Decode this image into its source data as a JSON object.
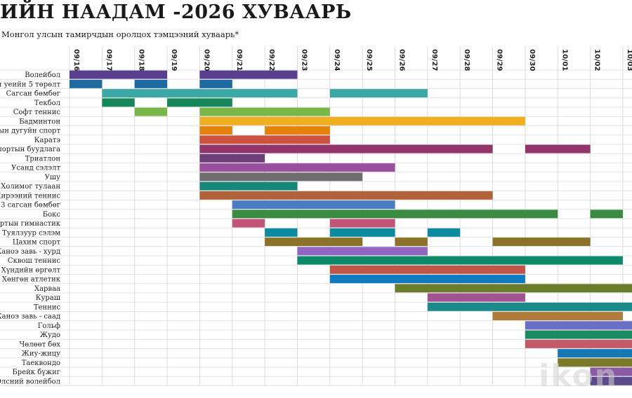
{
  "header": {
    "title": "ИЙН НААДАМ -2026 ХУВААРЬ",
    "subtitle": "Монгол улсын тамирчдын оролцох тэмцээний хуваарь*"
  },
  "watermark": "ikon",
  "chart_data": {
    "type": "gantt",
    "dates": [
      "09/16",
      "09/17",
      "09/18",
      "09/19",
      "09/20",
      "09/21",
      "09/22",
      "09/23",
      "09/24",
      "09/25",
      "09/26",
      "09/27",
      "09/28",
      "09/29",
      "09/30",
      "10/01",
      "10/02",
      "10/03"
    ],
    "rows": [
      {
        "label": "Волейбол",
        "color": "#5b3f8f",
        "spans": [
          [
            0,
            3
          ],
          [
            4,
            7
          ]
        ]
      },
      {
        "label": "ин уеийн 5 төрөлт",
        "color": "#1c6aa0",
        "spans": [
          [
            0,
            1
          ],
          [
            2,
            3
          ],
          [
            4,
            5
          ]
        ]
      },
      {
        "label": "Сагсан бөмбөг",
        "color": "#3aa8a4",
        "spans": [
          [
            1,
            7
          ],
          [
            8,
            11
          ]
        ]
      },
      {
        "label": "Текбол",
        "color": "#15875a",
        "spans": [
          [
            1,
            2
          ],
          [
            3,
            5
          ]
        ]
      },
      {
        "label": "Софт теннис",
        "color": "#7ab648",
        "spans": [
          [
            2,
            3
          ],
          [
            4,
            8
          ]
        ]
      },
      {
        "label": "Бадминтон",
        "color": "#f0ae1e",
        "spans": [
          [
            4,
            14
          ]
        ]
      },
      {
        "label": "мын дугуйн спорт",
        "color": "#e5820e",
        "spans": [
          [
            4,
            5
          ],
          [
            6,
            8
          ]
        ]
      },
      {
        "label": "Каратэ",
        "color": "#cf5240",
        "spans": [
          [
            4,
            8
          ]
        ]
      },
      {
        "label": "Спортын буудлага",
        "color": "#93346a",
        "spans": [
          [
            4,
            13
          ],
          [
            14,
            16
          ]
        ]
      },
      {
        "label": "Триатлон",
        "color": "#6e3e78",
        "spans": [
          [
            4,
            6
          ]
        ]
      },
      {
        "label": "Усанд сэлэлт",
        "color": "#9a4f9e",
        "spans": [
          [
            4,
            10
          ]
        ]
      },
      {
        "label": "Ушу",
        "color": "#6e6e6e",
        "spans": [
          [
            4,
            9
          ]
        ]
      },
      {
        "label": "Холимог тулаан",
        "color": "#168778",
        "spans": [
          [
            4,
            7
          ]
        ]
      },
      {
        "label": "Ширээний теннис",
        "color": "#b0633a",
        "spans": [
          [
            4,
            13
          ]
        ]
      },
      {
        "label": "3×3 сагсан бөмбөг",
        "color": "#4a7cc4",
        "spans": [
          [
            5,
            10
          ]
        ]
      },
      {
        "label": "Бокс",
        "color": "#3b8a42",
        "spans": [
          [
            5,
            15
          ],
          [
            16,
            17
          ]
        ]
      },
      {
        "label": "ортын гимнастик",
        "color": "#c25577",
        "spans": [
          [
            5,
            6
          ],
          [
            8,
            10
          ]
        ]
      },
      {
        "label": "Туялзуур сэлэм",
        "color": "#0b8aa0",
        "spans": [
          [
            6,
            7
          ],
          [
            8,
            10
          ],
          [
            11,
            12
          ]
        ]
      },
      {
        "label": "Цахим спорт",
        "color": "#8c7228",
        "spans": [
          [
            6,
            9
          ],
          [
            10,
            11
          ],
          [
            13,
            16
          ]
        ]
      },
      {
        "label": "Каноэ завь - хурд",
        "color": "#9066c0",
        "spans": [
          [
            7,
            11
          ]
        ]
      },
      {
        "label": "Сквош теннис",
        "color": "#0d8a6a",
        "spans": [
          [
            7,
            17
          ]
        ]
      },
      {
        "label": "Хүндийн өргөлт",
        "color": "#c0564a",
        "spans": [
          [
            8,
            14
          ]
        ]
      },
      {
        "label": "Хөнгөн атлетик",
        "color": "#0e7bbf",
        "spans": [
          [
            8,
            14
          ]
        ]
      },
      {
        "label": "Харваа",
        "color": "#6a7d2a",
        "spans": [
          [
            10,
            17.4
          ]
        ]
      },
      {
        "label": "Куpаш",
        "color": "#a0548f",
        "spans": [
          [
            11,
            14
          ]
        ]
      },
      {
        "label": "Теннис",
        "color": "#1a8a8a",
        "spans": [
          [
            11,
            17.4
          ]
        ]
      },
      {
        "label": "Каноэ завь - саад",
        "color": "#b07a3a",
        "spans": [
          [
            13,
            17
          ]
        ]
      },
      {
        "label": "Гольф",
        "color": "#6b6fc4",
        "spans": [
          [
            14,
            17.4
          ]
        ]
      },
      {
        "label": "Жудо",
        "color": "#1a8a62",
        "spans": [
          [
            14,
            17.4
          ]
        ]
      },
      {
        "label": "Чөлөөт бөх",
        "color": "#c25a6a",
        "spans": [
          [
            14,
            17.4
          ]
        ]
      },
      {
        "label": "Жиу-жицу",
        "color": "#1478b4",
        "spans": [
          [
            15,
            17.4
          ]
        ]
      },
      {
        "label": "Таеквондо",
        "color": "#7a7a2a",
        "spans": [
          [
            15,
            17.4
          ]
        ]
      },
      {
        "label": "Брейк бүжиг",
        "color": "#8a5aa4",
        "spans": [
          [
            16,
            17.4
          ]
        ]
      },
      {
        "label": "Элсний волейбол",
        "color": "#5a4a8a",
        "spans": [
          [
            16,
            17.4
          ]
        ]
      }
    ]
  }
}
